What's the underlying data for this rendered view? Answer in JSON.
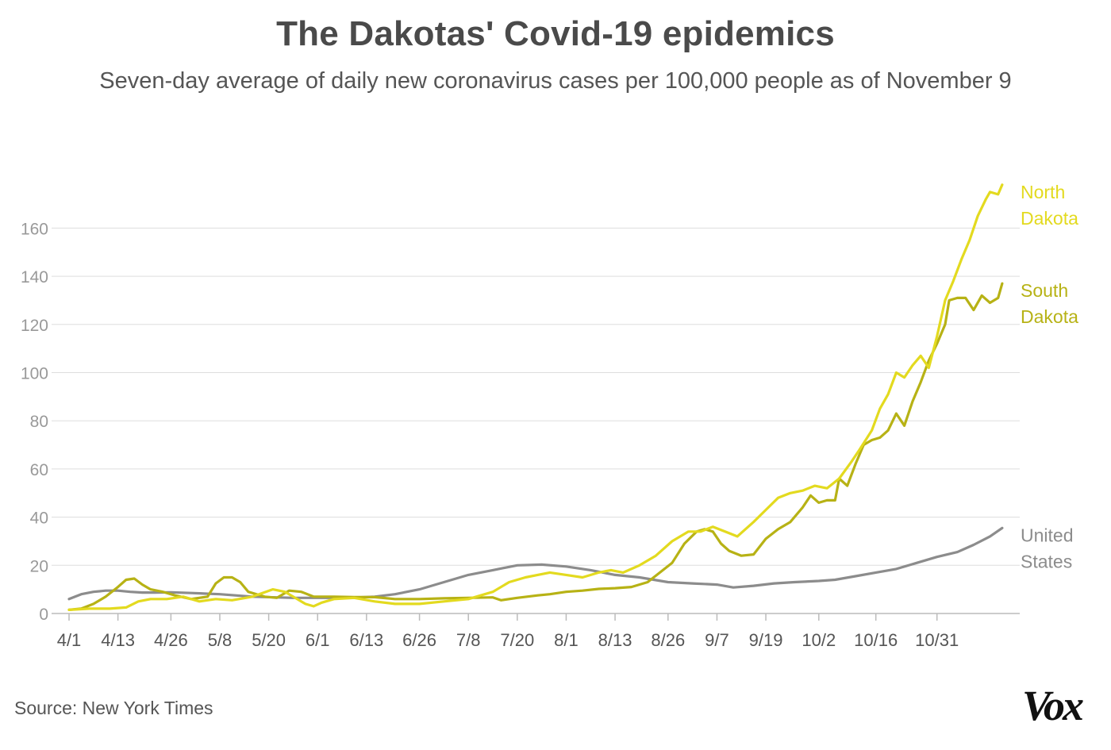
{
  "title": "The Dakotas' Covid-19 epidemics",
  "subtitle": "Seven-day average of daily new coronavirus cases per 100,000 people as of November 9",
  "source": "Source: New York Times",
  "logo": "Vox",
  "chart_data": {
    "type": "line",
    "title": "The Dakotas' Covid-19 epidemics",
    "xlabel": "",
    "ylabel": "",
    "ylim": [
      0,
      180
    ],
    "grid": true,
    "y_ticks": [
      0,
      20,
      40,
      60,
      80,
      100,
      120,
      140,
      160
    ],
    "x_ticks": [
      {
        "day": 0,
        "label": "4/1"
      },
      {
        "day": 12,
        "label": "4/13"
      },
      {
        "day": 25,
        "label": "4/26"
      },
      {
        "day": 37,
        "label": "5/8"
      },
      {
        "day": 49,
        "label": "5/20"
      },
      {
        "day": 61,
        "label": "6/1"
      },
      {
        "day": 73,
        "label": "6/13"
      },
      {
        "day": 86,
        "label": "6/26"
      },
      {
        "day": 98,
        "label": "7/8"
      },
      {
        "day": 110,
        "label": "7/20"
      },
      {
        "day": 122,
        "label": "8/1"
      },
      {
        "day": 134,
        "label": "8/13"
      },
      {
        "day": 147,
        "label": "8/26"
      },
      {
        "day": 159,
        "label": "9/7"
      },
      {
        "day": 171,
        "label": "9/19"
      },
      {
        "day": 184,
        "label": "10/2"
      },
      {
        "day": 198,
        "label": "10/16"
      },
      {
        "day": 213,
        "label": "10/31"
      }
    ],
    "x_range": [
      0,
      230
    ],
    "series": [
      {
        "name": "United States",
        "label_lines": [
          "United",
          "States"
        ],
        "color": "#8c8c8c",
        "x": [
          0,
          3,
          6,
          9,
          12,
          15,
          18,
          21,
          25,
          30,
          37,
          45,
          55,
          61,
          68,
          75,
          80,
          86,
          92,
          98,
          104,
          110,
          116,
          122,
          128,
          134,
          140,
          147,
          153,
          159,
          163,
          168,
          173,
          178,
          184,
          188,
          193,
          198,
          203,
          208,
          213,
          218,
          222,
          226,
          229
        ],
        "values": [
          6,
          8,
          9,
          9.5,
          9.5,
          9,
          8.7,
          8.7,
          8.8,
          8.5,
          8,
          7,
          6.5,
          6.5,
          6.5,
          7,
          8,
          10,
          13,
          16,
          18,
          20,
          20.3,
          19.5,
          18,
          16,
          15,
          13,
          12.5,
          12,
          10.8,
          11.5,
          12.5,
          13,
          13.5,
          14,
          15.5,
          17,
          18.5,
          21,
          23.5,
          25.5,
          28.5,
          32,
          35.5
        ]
      },
      {
        "name": "South Dakota",
        "label_lines": [
          "South",
          "Dakota"
        ],
        "color": "#b7b215",
        "x": [
          0,
          3,
          6,
          9,
          12,
          14,
          16,
          18,
          20,
          23,
          26,
          30,
          34,
          36,
          38,
          40,
          42,
          44,
          48,
          51,
          54,
          57,
          60,
          65,
          70,
          75,
          80,
          86,
          92,
          98,
          104,
          106,
          110,
          115,
          118,
          122,
          126,
          130,
          134,
          138,
          142,
          145,
          148,
          151,
          154,
          156,
          158,
          160,
          162,
          165,
          168,
          171,
          174,
          177,
          180,
          182,
          184,
          186,
          188,
          189,
          191,
          193,
          195,
          197,
          199,
          201,
          203,
          205,
          207,
          209,
          211,
          213,
          215,
          216,
          218,
          220,
          222,
          224,
          226,
          228,
          229
        ],
        "values": [
          1.5,
          2,
          4,
          7,
          11,
          14,
          14.5,
          12,
          10,
          9,
          7.5,
          6,
          7,
          12.5,
          15,
          15,
          13,
          9,
          7,
          6.5,
          9.5,
          9,
          7,
          7,
          6.8,
          6.8,
          6,
          6,
          6.3,
          6.5,
          6.7,
          5.5,
          6.5,
          7.5,
          8,
          9,
          9.5,
          10.2,
          10.5,
          11,
          13,
          17,
          21,
          29,
          34,
          35,
          34,
          29,
          26,
          24,
          24.5,
          31,
          35,
          38,
          44,
          49,
          46,
          47,
          47,
          56,
          53,
          62,
          70,
          72,
          73,
          76,
          83,
          78,
          88,
          96,
          105,
          112,
          120,
          130,
          131,
          131,
          126,
          132,
          129,
          131,
          137
        ]
      },
      {
        "name": "North Dakota",
        "label_lines": [
          "North",
          "Dakota"
        ],
        "color": "#e3da1f",
        "x": [
          0,
          5,
          10,
          14,
          17,
          20,
          24,
          28,
          32,
          36,
          40,
          45,
          50,
          53,
          56,
          58,
          60,
          62,
          65,
          70,
          75,
          80,
          86,
          92,
          98,
          104,
          108,
          112,
          115,
          118,
          122,
          126,
          130,
          133,
          136,
          140,
          144,
          148,
          152,
          155,
          158,
          161,
          164,
          168,
          171,
          174,
          177,
          180,
          183,
          186,
          189,
          192,
          194,
          197,
          199,
          201,
          203,
          205,
          207,
          209,
          211,
          213,
          215,
          217,
          219,
          221,
          223,
          225,
          226,
          228,
          229
        ],
        "values": [
          1.5,
          2,
          2,
          2.5,
          5,
          6,
          6,
          7,
          5,
          6,
          5.5,
          7,
          10,
          9,
          6,
          4,
          3,
          4.5,
          6,
          6.5,
          5,
          4,
          4,
          5,
          6,
          9,
          13,
          15,
          16,
          17,
          16,
          15,
          17,
          18,
          17,
          20,
          24,
          30,
          34,
          34,
          36,
          34,
          32,
          38,
          43,
          48,
          50,
          51,
          53,
          52,
          56,
          63,
          68,
          76,
          85,
          91,
          100,
          98,
          103,
          107,
          102,
          115,
          130,
          138,
          147,
          155,
          165,
          172,
          175,
          174,
          178
        ]
      }
    ]
  }
}
